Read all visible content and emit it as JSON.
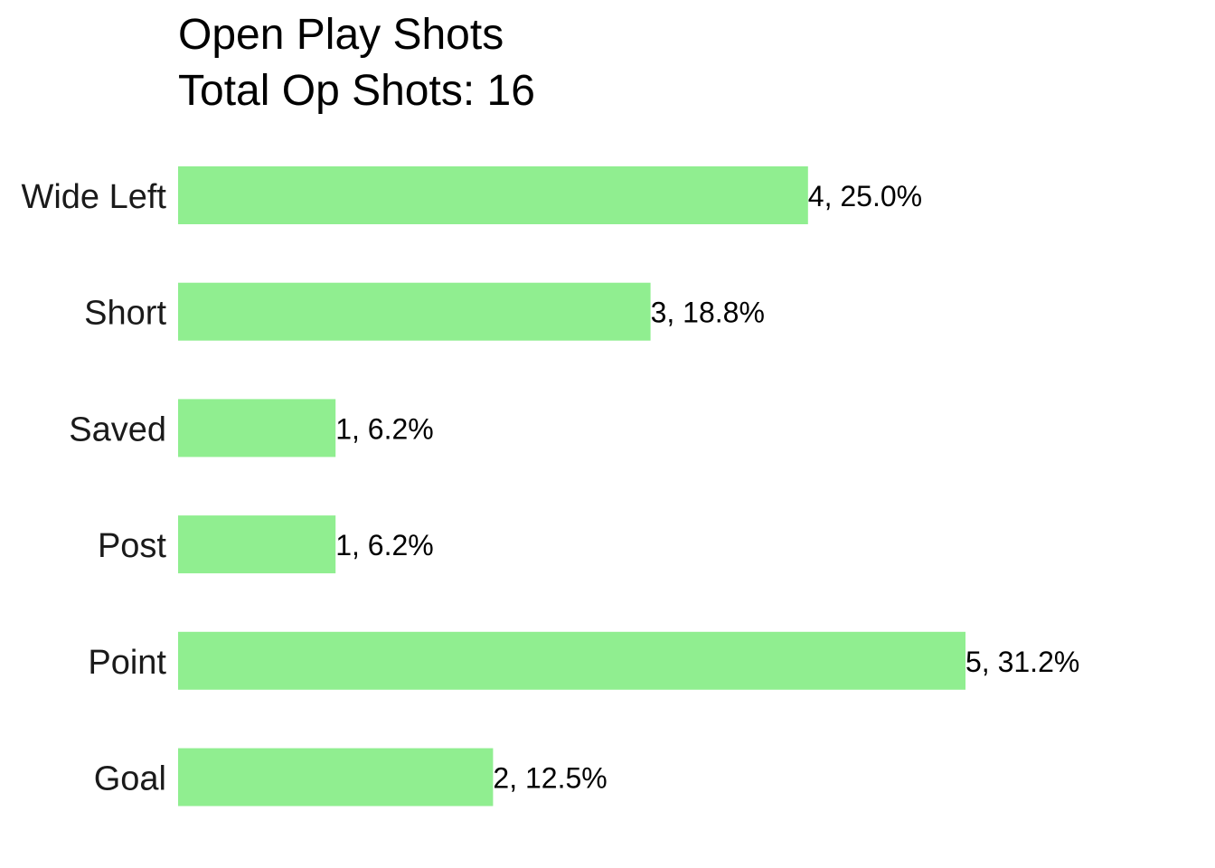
{
  "chart_data": {
    "type": "bar",
    "orientation": "horizontal",
    "title": "Open Play Shots",
    "subtitle": "Total Op Shots: 16",
    "categories": [
      "Wide Left",
      "Short",
      "Saved",
      "Post",
      "Point",
      "Goal"
    ],
    "values": [
      4,
      3,
      1,
      1,
      5,
      2
    ],
    "data_labels": [
      "4, 25.0%",
      "3, 18.8%",
      "1, 6.2%",
      "1, 6.2%",
      "5, 31.2%",
      "2, 12.5%"
    ],
    "xlim": [
      0,
      5
    ],
    "grid": false,
    "legend": "none",
    "bar_color": "#90EE90"
  }
}
